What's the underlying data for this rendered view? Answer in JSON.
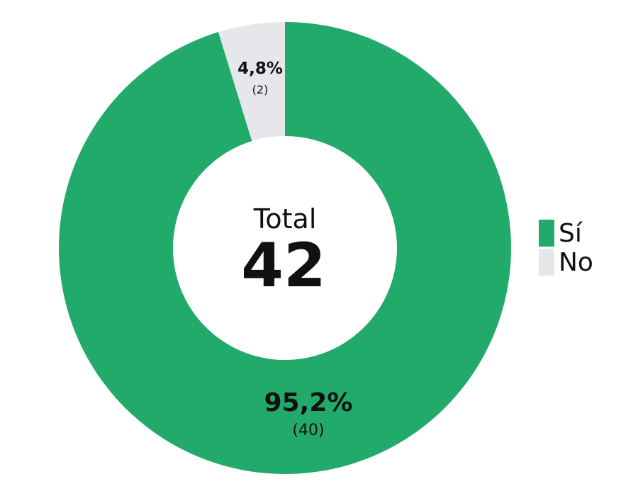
{
  "chart_data": {
    "type": "pie",
    "variant": "donut",
    "center": {
      "label": "Total",
      "value": "42"
    },
    "slices": [
      {
        "label": "Sí",
        "value": 40,
        "percent_label": "95,2%",
        "count_label": "(40)",
        "color": "#22aa6b"
      },
      {
        "label": "No",
        "value": 2,
        "percent_label": "4,8%",
        "count_label": "(2)",
        "color": "#e6e7eb"
      }
    ],
    "legend": {
      "position": "right",
      "items": [
        "Sí",
        "No"
      ]
    }
  }
}
